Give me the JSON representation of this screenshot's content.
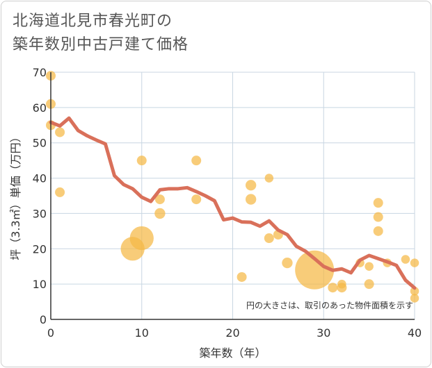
{
  "chart_data": {
    "type": "scatter",
    "title_lines": [
      "北海道北見市春光町の",
      "築年数別中古戸建て価格"
    ],
    "xlabel": "築年数（年）",
    "ylabel": "坪（3.3㎡）単価（万円）",
    "xlim": [
      0,
      40
    ],
    "ylim": [
      0,
      70
    ],
    "xticks": [
      0,
      10,
      20,
      30,
      40
    ],
    "yticks": [
      0,
      10,
      20,
      30,
      40,
      50,
      60,
      70
    ],
    "grid": true,
    "note": "円の大きさは、取引のあった物件面積を示す",
    "colors": {
      "bubble": "#f5b945",
      "line": "#d9705a",
      "grid": "#c8d6e2",
      "axis": "#333333"
    },
    "bubbles": [
      {
        "x": 0,
        "y": 69,
        "size": 1
      },
      {
        "x": 0,
        "y": 61,
        "size": 1
      },
      {
        "x": 0,
        "y": 55,
        "size": 1
      },
      {
        "x": 1,
        "y": 53,
        "size": 1
      },
      {
        "x": 1,
        "y": 36,
        "size": 1
      },
      {
        "x": 9,
        "y": 20,
        "size": 6
      },
      {
        "x": 10,
        "y": 23,
        "size": 6
      },
      {
        "x": 10,
        "y": 45,
        "size": 1
      },
      {
        "x": 12,
        "y": 34,
        "size": 1
      },
      {
        "x": 12,
        "y": 30,
        "size": 1.2
      },
      {
        "x": 16,
        "y": 45,
        "size": 1
      },
      {
        "x": 16,
        "y": 34,
        "size": 1
      },
      {
        "x": 21,
        "y": 12,
        "size": 1
      },
      {
        "x": 22,
        "y": 38,
        "size": 1.2
      },
      {
        "x": 22,
        "y": 34,
        "size": 1.2
      },
      {
        "x": 24,
        "y": 40,
        "size": 0.8
      },
      {
        "x": 24,
        "y": 23,
        "size": 1
      },
      {
        "x": 25,
        "y": 24,
        "size": 1
      },
      {
        "x": 26,
        "y": 16,
        "size": 1.2
      },
      {
        "x": 29,
        "y": 14,
        "size": 16
      },
      {
        "x": 31,
        "y": 9,
        "size": 1
      },
      {
        "x": 32,
        "y": 9,
        "size": 1
      },
      {
        "x": 32,
        "y": 10,
        "size": 0.8
      },
      {
        "x": 34,
        "y": 16,
        "size": 0.8
      },
      {
        "x": 35,
        "y": 15,
        "size": 0.8
      },
      {
        "x": 35,
        "y": 10,
        "size": 1
      },
      {
        "x": 36,
        "y": 33,
        "size": 1
      },
      {
        "x": 36,
        "y": 29,
        "size": 1
      },
      {
        "x": 36,
        "y": 25,
        "size": 1
      },
      {
        "x": 37,
        "y": 16,
        "size": 0.8
      },
      {
        "x": 39,
        "y": 17,
        "size": 0.8
      },
      {
        "x": 40,
        "y": 16,
        "size": 0.8
      },
      {
        "x": 40,
        "y": 8,
        "size": 0.8
      },
      {
        "x": 40,
        "y": 6,
        "size": 0.8
      }
    ],
    "trend": {
      "x": [
        0,
        1,
        2,
        3,
        4,
        5,
        6,
        7,
        8,
        9,
        10,
        11,
        12,
        13,
        14,
        15,
        16,
        17,
        18,
        19,
        20,
        21,
        22,
        23,
        24,
        25,
        26,
        27,
        28,
        29,
        30,
        31,
        32,
        33,
        34,
        35,
        36,
        37,
        38,
        39,
        40
      ],
      "y": [
        55.8,
        54.8,
        57,
        53.5,
        52,
        50.8,
        49.7,
        40.7,
        38.2,
        37,
        34.6,
        33.4,
        36.7,
        37,
        37,
        37.3,
        36.2,
        35,
        33.6,
        28.2,
        28.7,
        27.6,
        27.5,
        26.4,
        27.9,
        25.3,
        24,
        20.7,
        19.3,
        17.2,
        15,
        13.9,
        14.3,
        13.2,
        16.8,
        18.1,
        17.2,
        16.3,
        15.3,
        11.1,
        8.9
      ]
    }
  }
}
